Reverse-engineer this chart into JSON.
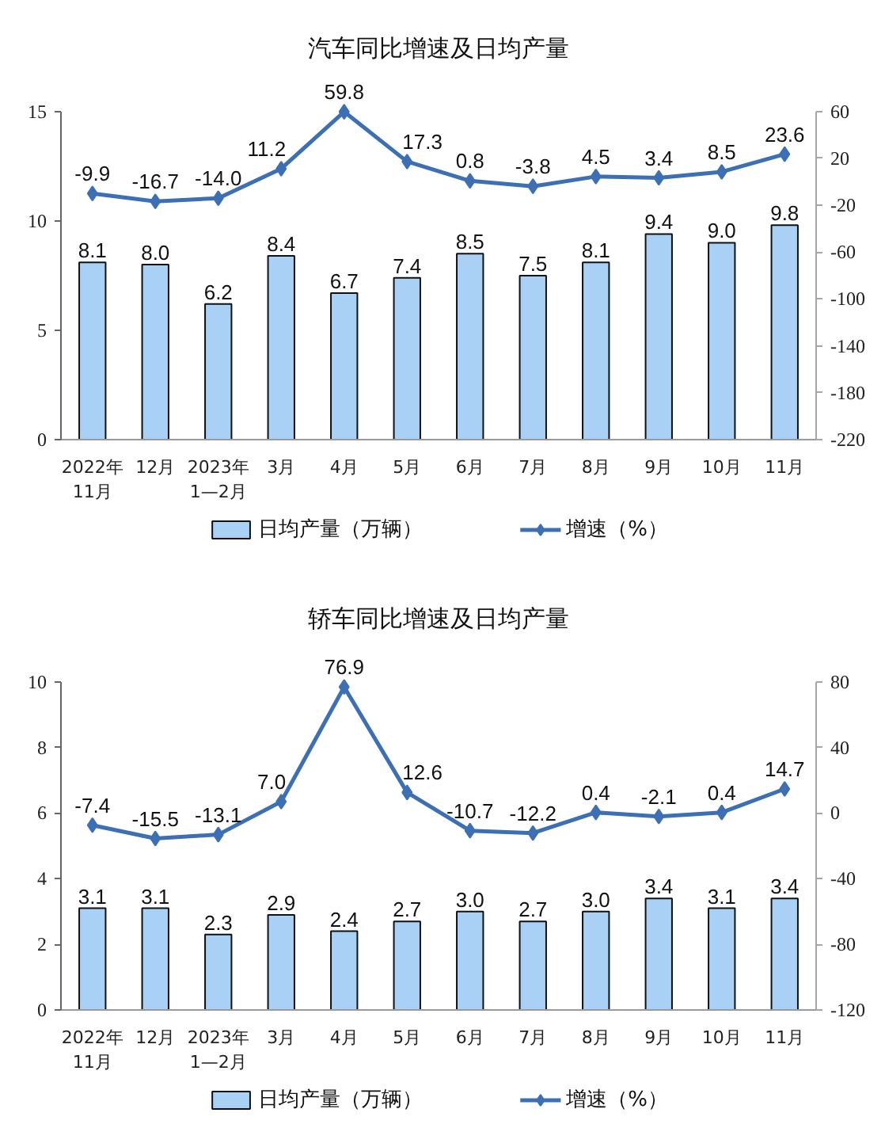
{
  "chart_data": [
    {
      "type": "bar",
      "title": "汽车同比增速及日均产量",
      "categories": [
        "2022年\n11月",
        "12月",
        "2023年\n1—2月",
        "3月",
        "4月",
        "5月",
        "6月",
        "7月",
        "8月",
        "9月",
        "10月",
        "11月"
      ],
      "series": [
        {
          "name": "日均产量（万辆）",
          "color": "#a9d1f5",
          "values": [
            8.1,
            8.0,
            6.2,
            8.4,
            6.7,
            7.4,
            8.5,
            7.5,
            8.1,
            9.4,
            9.0,
            9.8
          ],
          "value_labels": [
            "8.1",
            "8.0",
            "6.2",
            "8.4",
            "6.7",
            "7.4",
            "8.5",
            "7.5",
            "8.1",
            "9.4",
            "9.0",
            "9.8"
          ]
        },
        {
          "name": "增速（%）",
          "type": "line",
          "axis": "y2",
          "color": "#3c6fb4",
          "marker": "diamond",
          "values": [
            -9.9,
            -16.7,
            -14.0,
            11.2,
            59.8,
            17.3,
            0.8,
            -3.8,
            4.5,
            3.4,
            8.5,
            23.6
          ],
          "value_labels": [
            "-9.9",
            "-16.7",
            "-14.0",
            "11.2",
            "59.8",
            "17.3",
            "0.8",
            "-3.8",
            "4.5",
            "3.4",
            "8.5",
            "23.6"
          ]
        }
      ],
      "ylim": [
        0,
        15
      ],
      "yticks": [
        0,
        5,
        10,
        15
      ],
      "y2lim": [
        -220,
        60
      ],
      "y2ticks": [
        -220,
        -180,
        -140,
        -100,
        -60,
        -20,
        20,
        60
      ],
      "legend": "bottom",
      "grid": false
    },
    {
      "type": "bar",
      "title": "轿车同比增速及日均产量",
      "categories": [
        "2022年\n11月",
        "12月",
        "2023年\n1—2月",
        "3月",
        "4月",
        "5月",
        "6月",
        "7月",
        "8月",
        "9月",
        "10月",
        "11月"
      ],
      "series": [
        {
          "name": "日均产量（万辆）",
          "color": "#a9d1f5",
          "values": [
            3.1,
            3.1,
            2.3,
            2.9,
            2.4,
            2.7,
            3.0,
            2.7,
            3.0,
            3.4,
            3.1,
            3.4
          ],
          "value_labels": [
            "3.1",
            "3.1",
            "2.3",
            "2.9",
            "2.4",
            "2.7",
            "3.0",
            "2.7",
            "3.0",
            "3.4",
            "3.1",
            "3.4"
          ]
        },
        {
          "name": "增速（%）",
          "type": "line",
          "axis": "y2",
          "color": "#3c6fb4",
          "marker": "diamond",
          "values": [
            -7.4,
            -15.5,
            -13.1,
            7.0,
            76.9,
            12.6,
            -10.7,
            -12.2,
            0.4,
            -2.1,
            0.4,
            14.7
          ],
          "value_labels": [
            "-7.4",
            "-15.5",
            "-13.1",
            "7.0",
            "76.9",
            "12.6",
            "-10.7",
            "-12.2",
            "0.4",
            "-2.1",
            "0.4",
            "14.7"
          ]
        }
      ],
      "ylim": [
        0,
        10
      ],
      "yticks": [
        0,
        2,
        4,
        6,
        8,
        10
      ],
      "y2lim": [
        -120,
        80
      ],
      "y2ticks": [
        -120,
        -80,
        -40,
        0,
        40,
        80
      ],
      "legend": "bottom",
      "grid": false
    }
  ]
}
